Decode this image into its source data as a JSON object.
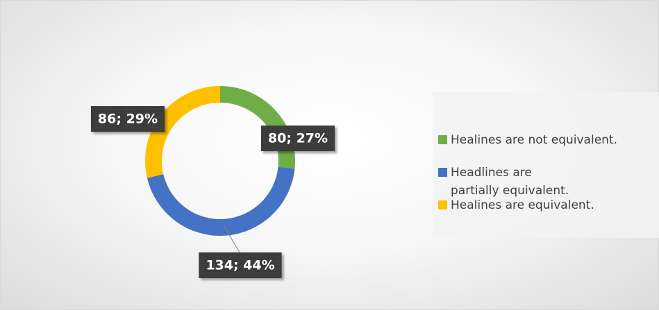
{
  "chart_data": {
    "type": "doughnut",
    "categories": [
      "Healines are not equivalent.",
      "Headlines are partially equivalent.",
      "Healines are equivalent."
    ],
    "values": [
      80,
      134,
      86
    ],
    "value_labels": [
      "80; 27%",
      "134; 44%",
      "86; 29%"
    ],
    "colors": [
      "#70ad47",
      "#4472c4",
      "#ffc000"
    ],
    "legend": "right"
  }
}
